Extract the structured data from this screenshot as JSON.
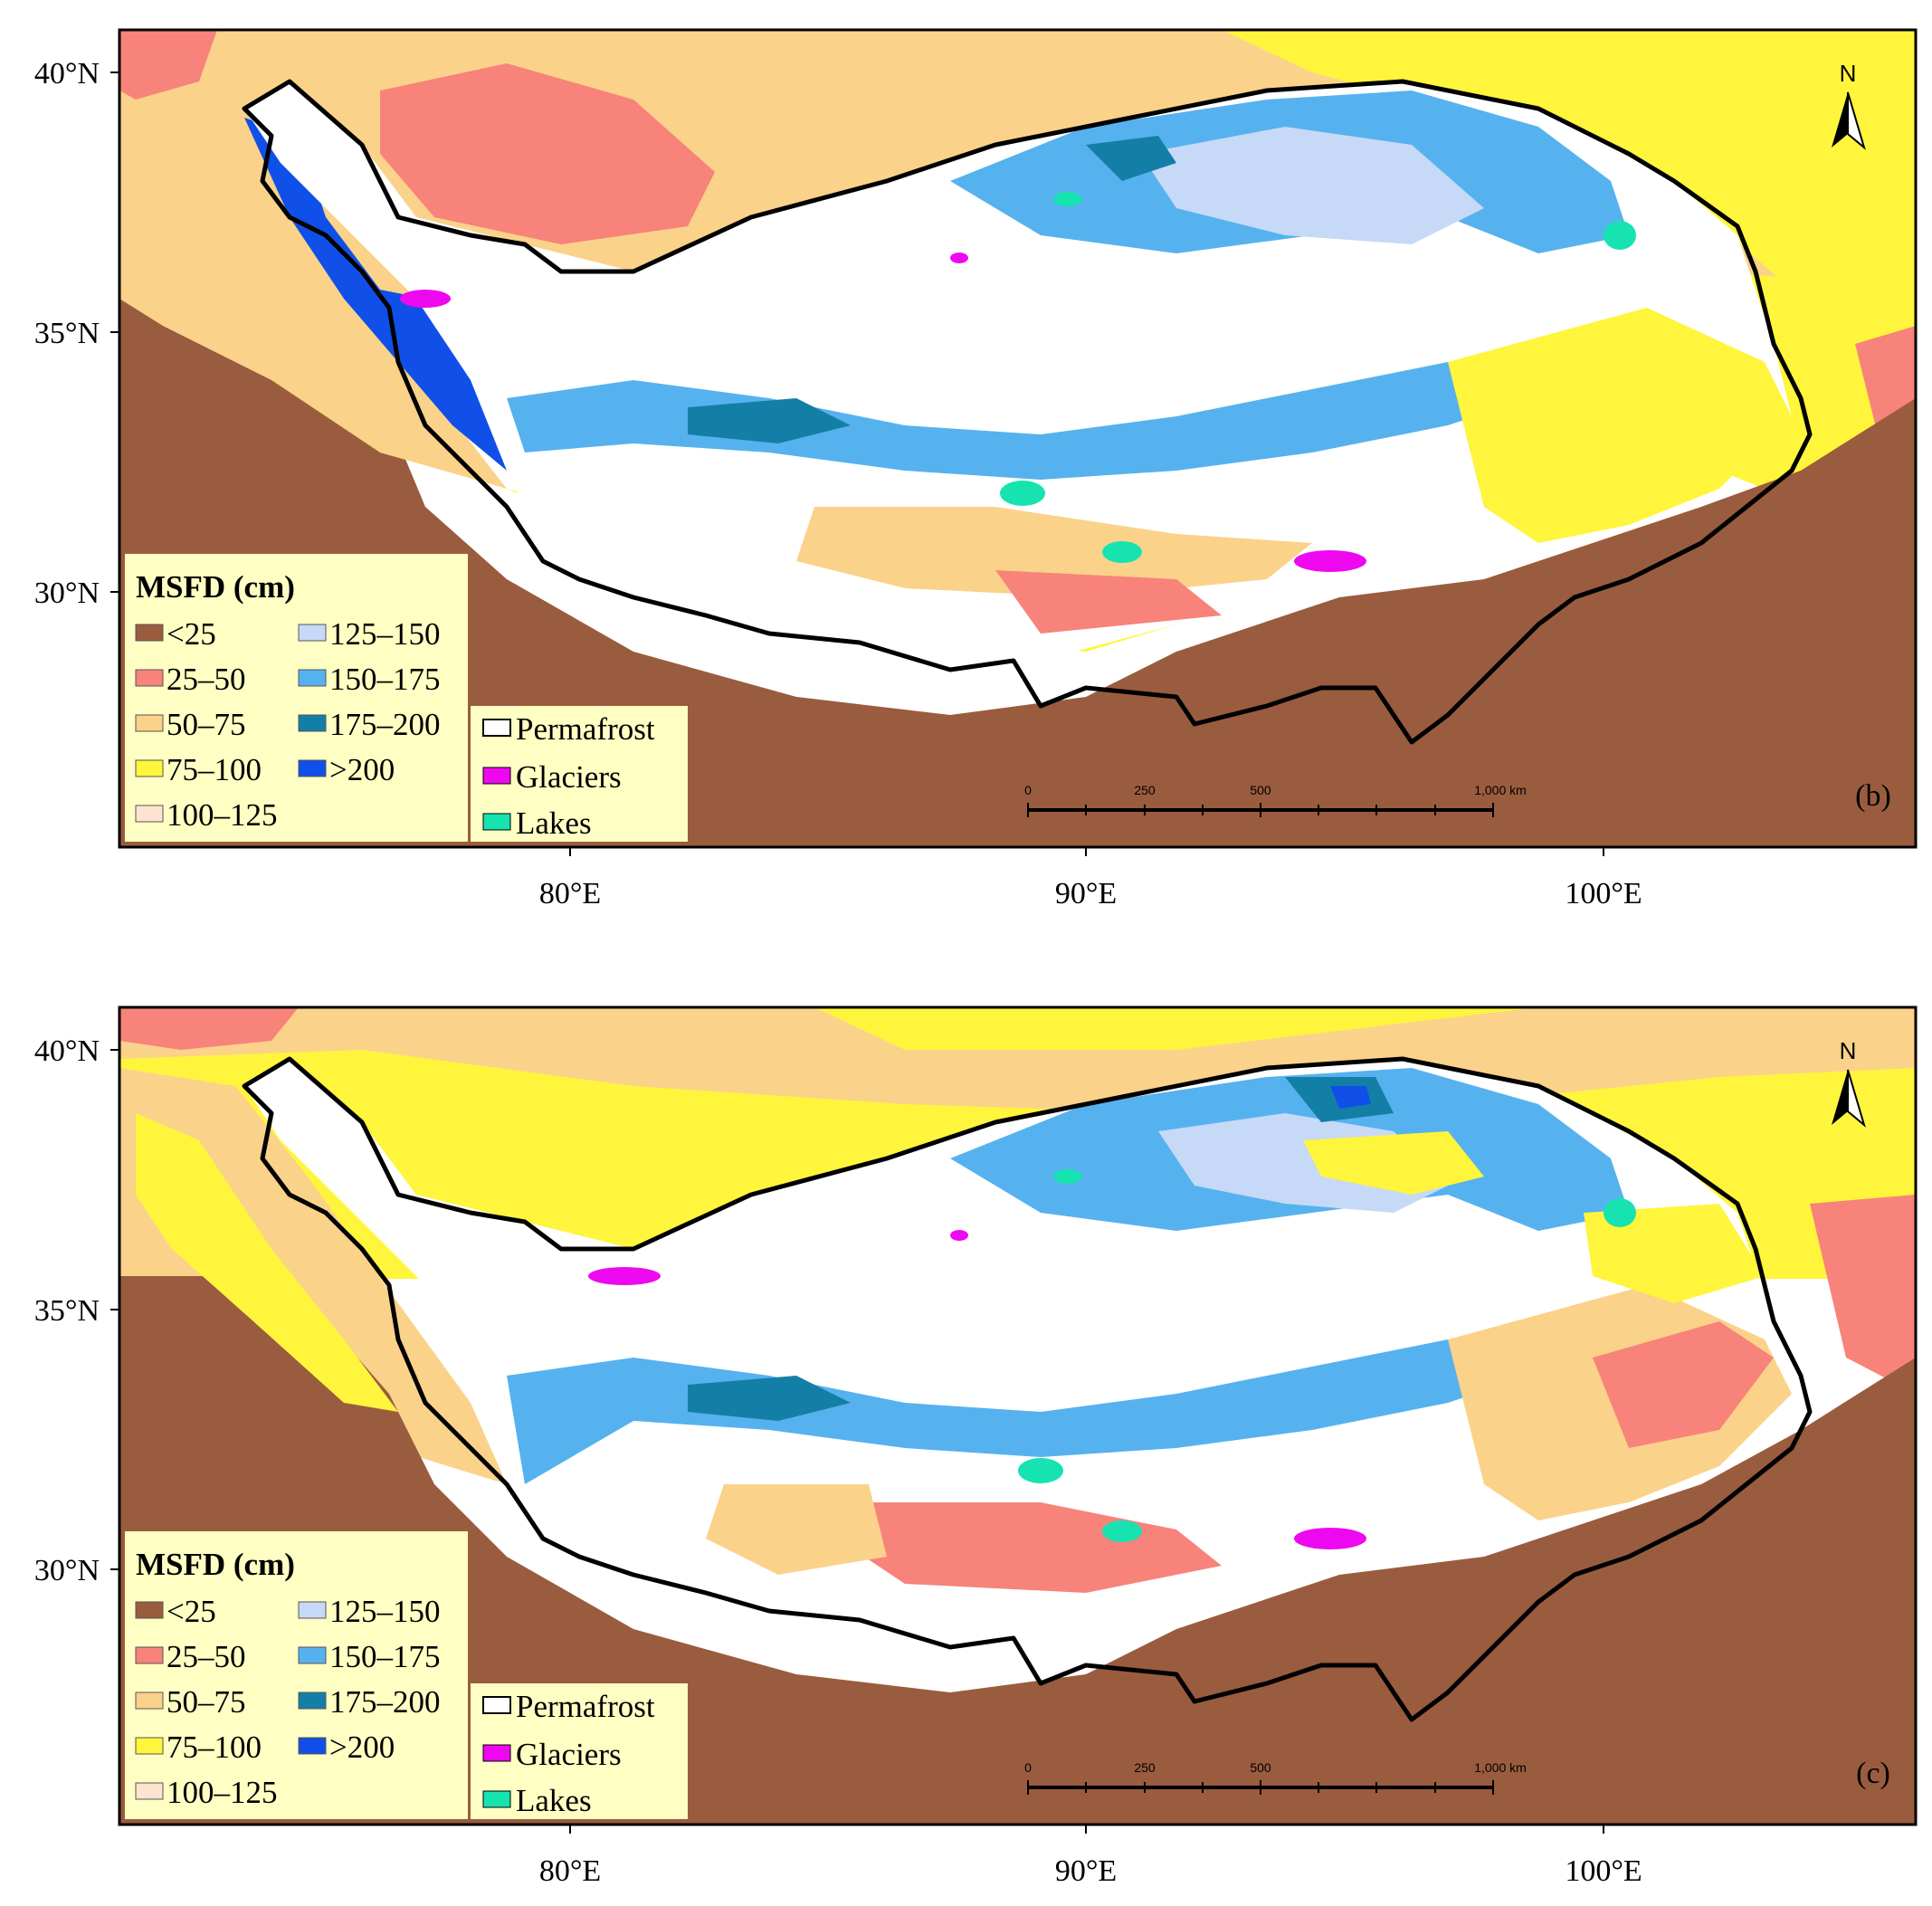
{
  "colors": {
    "lt25": "#9a5c3e",
    "c25_50": "#f7837a",
    "c50_75": "#fbd28a",
    "c75_100": "#fff53c",
    "c100_125": "#fde4d0",
    "c125_150": "#c6d9f7",
    "c150_175": "#56b2ee",
    "c175_200": "#147fa6",
    "gt200": "#1050e8",
    "permafrost": "#ffffff",
    "glaciers": "#ee08f0",
    "lakes": "#17e3b0",
    "legend_bg": "#ffffc4",
    "border": "#000000"
  },
  "axes": {
    "y_ticks": [
      "40°N",
      "35°N",
      "30°N"
    ],
    "x_ticks": [
      "80°E",
      "90°E",
      "100°E"
    ]
  },
  "legend": {
    "title": "MSFD (cm)",
    "classes": [
      {
        "label": "<25",
        "color_key": "lt25"
      },
      {
        "label": "25–50",
        "color_key": "c25_50"
      },
      {
        "label": "50–75",
        "color_key": "c50_75"
      },
      {
        "label": "75–100",
        "color_key": "c75_100"
      },
      {
        "label": "100–125",
        "color_key": "c100_125"
      },
      {
        "label": "125–150",
        "color_key": "c125_150"
      },
      {
        "label": "150–175",
        "color_key": "c150_175"
      },
      {
        "label": "175–200",
        "color_key": "c175_200"
      },
      {
        "label": ">200",
        "color_key": "gt200"
      }
    ],
    "extras": [
      {
        "label": "Permafrost",
        "color_key": "permafrost"
      },
      {
        "label": "Glaciers",
        "color_key": "glaciers"
      },
      {
        "label": "Lakes",
        "color_key": "lakes"
      }
    ]
  },
  "scale_bar": {
    "labels": [
      "0",
      "250",
      "500",
      "1,000 km"
    ]
  },
  "north_arrow": {
    "label": "N",
    "icon": "north-arrow-icon"
  },
  "panels": [
    {
      "id": "b",
      "label": "(b)"
    },
    {
      "id": "c",
      "label": "(c)"
    }
  ]
}
